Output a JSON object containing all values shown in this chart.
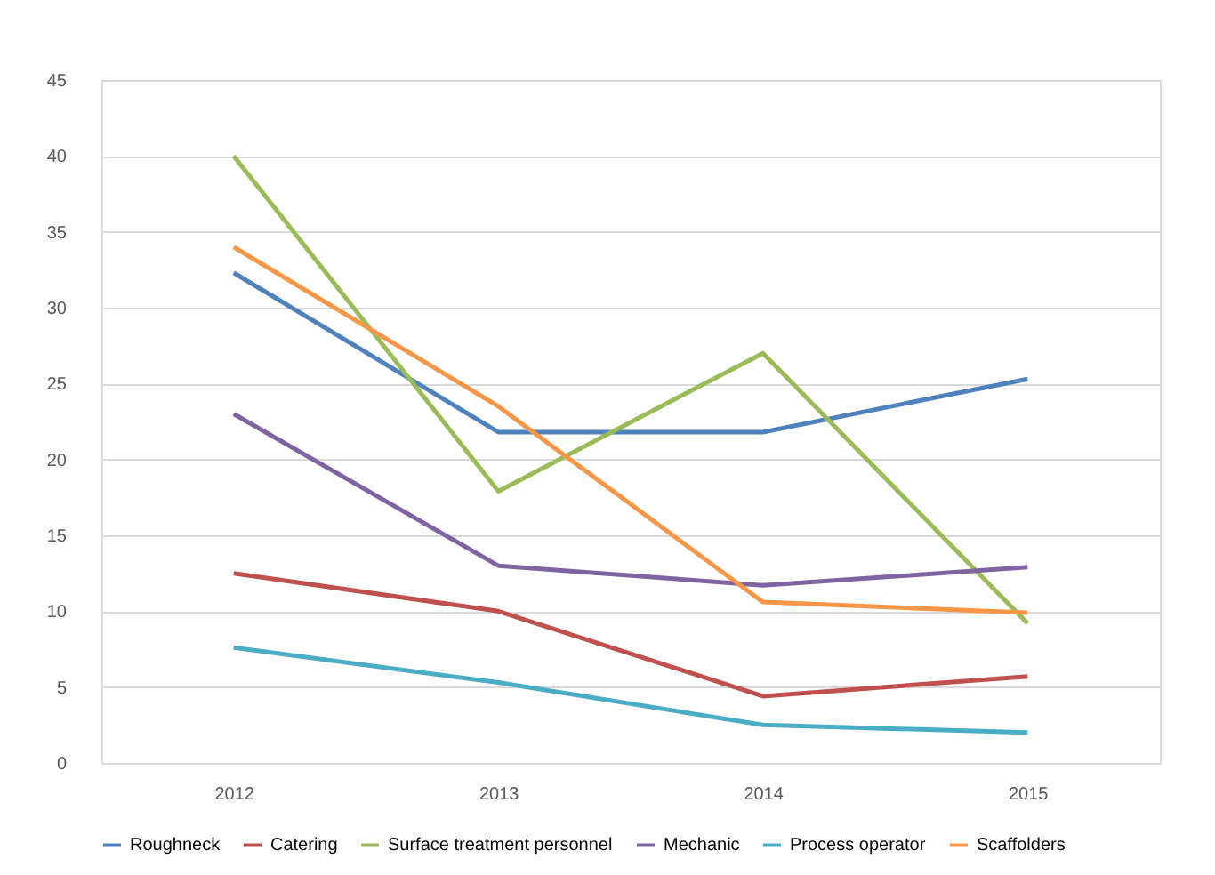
{
  "chart_data": {
    "type": "line",
    "categories": [
      "2012",
      "2013",
      "2014",
      "2015"
    ],
    "series": [
      {
        "name": "Roughneck",
        "color": "#4f81bd",
        "values": [
          32.3,
          21.8,
          21.8,
          25.3
        ]
      },
      {
        "name": "Catering",
        "color": "#c0504d",
        "values": [
          12.5,
          10.0,
          4.4,
          5.7
        ]
      },
      {
        "name": "Surface treatment personnel",
        "color": "#9bbb59",
        "values": [
          40,
          17.9,
          27,
          9.2
        ]
      },
      {
        "name": "Mechanic",
        "color": "#8064a2",
        "values": [
          23,
          13,
          11.7,
          12.9
        ]
      },
      {
        "name": "Process operator",
        "color": "#4bacc6",
        "values": [
          7.6,
          5.3,
          2.5,
          2.0
        ]
      },
      {
        "name": "Scaffolders",
        "color": "#f79646",
        "values": [
          34,
          23.5,
          10.6,
          9.9
        ]
      }
    ],
    "ylim": [
      0,
      45
    ],
    "yticks": [
      0,
      5,
      10,
      15,
      20,
      25,
      30,
      35,
      40,
      45
    ],
    "grid": "y",
    "legend": "bottom",
    "marker": "none",
    "line_style": "solid"
  }
}
